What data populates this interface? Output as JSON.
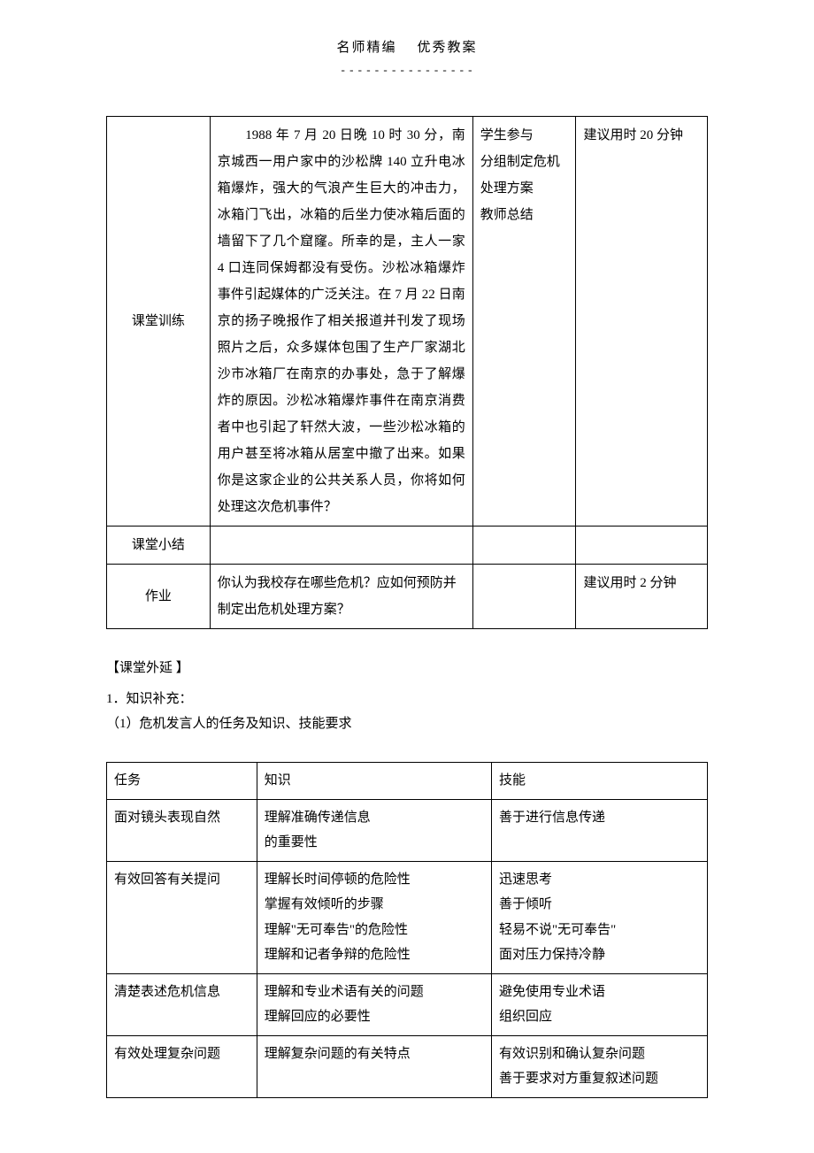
{
  "header": {
    "left": "名师精编",
    "right": "优秀教案",
    "underline": "- - - - - - - - - - - - - - - -"
  },
  "table1": {
    "rows": [
      {
        "label": "课堂训练",
        "content": "　　1988 年 7 月 20 日晚 10 时 30 分，南京城西一用户家中的沙松牌 140 立升电冰箱爆炸，强大的气浪产生巨大的冲击力，冰箱门飞出，冰箱的后坐力使冰箱后面的墙留下了几个窟窿。所幸的是，主人一家 4 口连同保姆都没有受伤。沙松冰箱爆炸事件引起媒体的广泛关注。在 7 月 22 日南京的扬子晚报作了相关报道并刊发了现场照片之后，众多媒体包围了生产厂家湖北沙市冰箱厂在南京的办事处，急于了解爆炸的原因。沙松冰箱爆炸事件在南京消费者中也引起了轩然大波，一些沙松冰箱的用户甚至将冰箱从居室中撤了出来。如果你是这家企业的公共关系人员，你将如何处理这次危机事件？",
        "col3": "学生参与\n分组制定危机处理方案\n教师总结",
        "col4": "建议用时 20 分钟"
      },
      {
        "label": "课堂小结",
        "content": "",
        "col3": "",
        "col4": ""
      },
      {
        "label": "作业",
        "content": "你认为我校存在哪些危机？应如何预防并制定出危机处理方案？",
        "col3": "",
        "col4": "建议用时 2 分钟"
      }
    ]
  },
  "extension": {
    "title": "【课堂外延 】",
    "item1": "1．知识补充：",
    "item1_1": "（1）危机发言人的任务及知识、技能要求"
  },
  "table2": {
    "header": {
      "c1": "任务",
      "c2": "知识",
      "c3": "技能"
    },
    "rows": [
      {
        "c1": "面对镜头表现自然",
        "c2": "理解准确传递信息\n的重要性",
        "c3": "善于进行信息传递"
      },
      {
        "c1": "有效回答有关提问",
        "c2": "理解长时间停顿的危险性\n掌握有效倾听的步骤\n理解\"无可奉告\"的危险性\n理解和记者争辩的危险性",
        "c3": "迅速思考\n善于倾听\n轻易不说\"无可奉告\"\n面对压力保持冷静"
      },
      {
        "c1": "清楚表述危机信息",
        "c2": "理解和专业术语有关的问题\n理解回应的必要性",
        "c3": "避免使用专业术语\n组织回应"
      },
      {
        "c1": "有效处理复杂问题",
        "c2": "理解复杂问题的有关特点",
        "c3": "有效识别和确认复杂问题\n善于要求对方重复叙述问题"
      }
    ]
  }
}
